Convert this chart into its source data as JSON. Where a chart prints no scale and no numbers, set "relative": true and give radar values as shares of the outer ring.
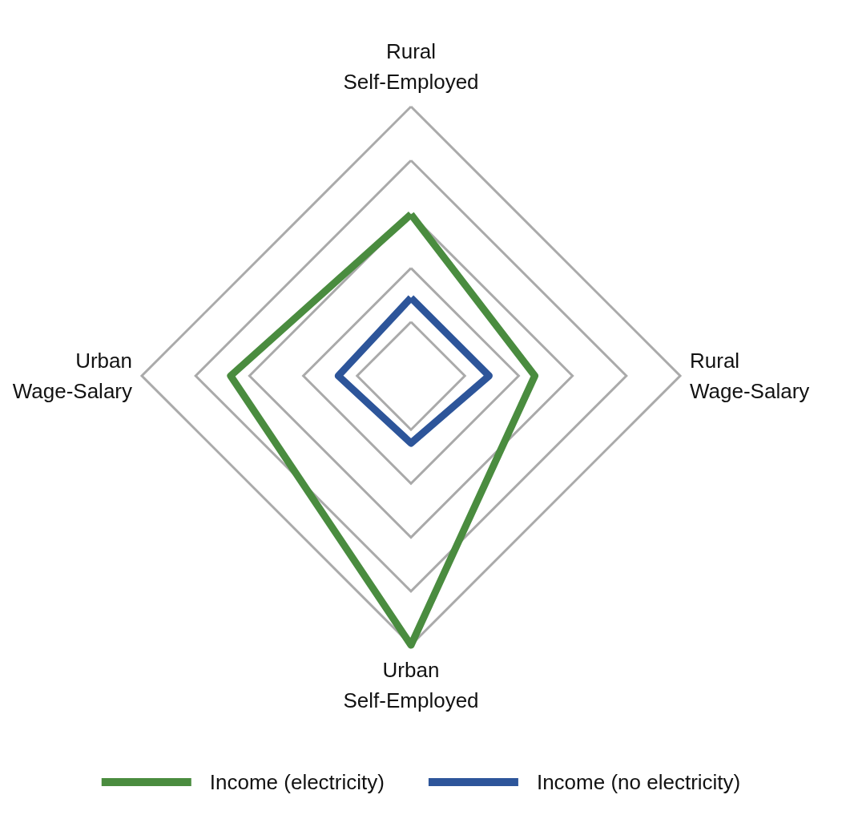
{
  "chart_data": {
    "type": "radar",
    "relative": true,
    "grid": true,
    "legend": "bottom",
    "categories": [
      "Rural Self-Employed",
      "Rural Wage-Salary",
      "Urban Self-Employed",
      "Urban Wage-Salary"
    ],
    "series": [
      {
        "name": "Income (electricity)",
        "color": "#4a8c3f",
        "values": [
          0.6,
          0.46,
          1.0,
          0.67
        ]
      },
      {
        "name": "Income (no electricity)",
        "color": "#2d559a",
        "values": [
          0.29,
          0.29,
          0.25,
          0.27
        ]
      }
    ]
  }
}
